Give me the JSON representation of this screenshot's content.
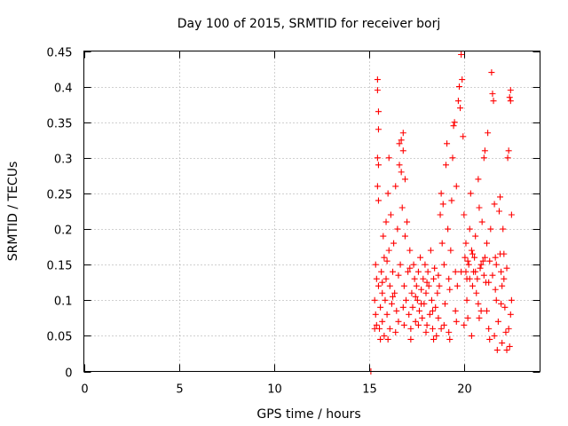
{
  "chart_data": {
    "type": "scatter",
    "title": "Day 100 of 2015, SRMTID for receiver borj",
    "xlabel": "GPS time / hours",
    "ylabel": "SRMTID / TECUs",
    "xlim": [
      0,
      24
    ],
    "ylim": [
      0,
      0.45
    ],
    "xticks": [
      0,
      5,
      10,
      15,
      20
    ],
    "xtick_labels": [
      "0",
      "5",
      "10",
      "15",
      "20"
    ],
    "yticks": [
      0,
      0.05,
      0.1,
      0.15,
      0.2,
      0.25,
      0.3,
      0.35,
      0.4,
      0.45
    ],
    "ytick_labels": [
      "0",
      "0.05",
      "0.1",
      "0.15",
      "0.2",
      "0.25",
      "0.3",
      "0.35",
      "0.4",
      "0.45"
    ],
    "grid": true,
    "marker": "+",
    "color": "#ff0000",
    "series": [
      {
        "name": "SRMTID",
        "points": [
          [
            15.1,
            0.0
          ],
          [
            15.3,
            0.06
          ],
          [
            15.3,
            0.1
          ],
          [
            15.35,
            0.15
          ],
          [
            15.35,
            0.08
          ],
          [
            15.4,
            0.13
          ],
          [
            15.4,
            0.065
          ],
          [
            15.45,
            0.41
          ],
          [
            15.45,
            0.395
          ],
          [
            15.5,
            0.365
          ],
          [
            15.5,
            0.34
          ],
          [
            15.45,
            0.3
          ],
          [
            15.5,
            0.29
          ],
          [
            15.45,
            0.26
          ],
          [
            15.5,
            0.24
          ],
          [
            15.5,
            0.12
          ],
          [
            15.55,
            0.06
          ],
          [
            15.6,
            0.045
          ],
          [
            15.6,
            0.09
          ],
          [
            15.65,
            0.14
          ],
          [
            15.7,
            0.07
          ],
          [
            15.7,
            0.11
          ],
          [
            15.75,
            0.19
          ],
          [
            15.8,
            0.16
          ],
          [
            15.8,
            0.05
          ],
          [
            15.85,
            0.1
          ],
          [
            15.9,
            0.21
          ],
          [
            15.9,
            0.13
          ],
          [
            15.95,
            0.08
          ],
          [
            16.0,
            0.25
          ],
          [
            16.05,
            0.17
          ],
          [
            16.05,
            0.3
          ],
          [
            16.1,
            0.12
          ],
          [
            16.1,
            0.06
          ],
          [
            16.15,
            0.22
          ],
          [
            16.2,
            0.095
          ],
          [
            16.25,
            0.14
          ],
          [
            16.3,
            0.18
          ],
          [
            16.35,
            0.11
          ],
          [
            16.4,
            0.26
          ],
          [
            16.45,
            0.085
          ],
          [
            16.5,
            0.2
          ],
          [
            16.55,
            0.07
          ],
          [
            16.6,
            0.29
          ],
          [
            16.6,
            0.32
          ],
          [
            16.65,
            0.15
          ],
          [
            16.7,
            0.28
          ],
          [
            16.7,
            0.325
          ],
          [
            16.75,
            0.23
          ],
          [
            16.8,
            0.335
          ],
          [
            16.8,
            0.31
          ],
          [
            16.85,
            0.12
          ],
          [
            16.9,
            0.27
          ],
          [
            16.9,
            0.19
          ],
          [
            16.95,
            0.1
          ],
          [
            17.0,
            0.21
          ],
          [
            17.05,
            0.14
          ],
          [
            17.1,
            0.08
          ],
          [
            17.15,
            0.17
          ],
          [
            17.2,
            0.06
          ],
          [
            17.25,
            0.11
          ],
          [
            17.3,
            0.09
          ],
          [
            17.35,
            0.15
          ],
          [
            17.4,
            0.13
          ],
          [
            17.45,
            0.07
          ],
          [
            17.5,
            0.12
          ],
          [
            17.55,
            0.1
          ],
          [
            17.6,
            0.14
          ],
          [
            17.65,
            0.085
          ],
          [
            17.7,
            0.16
          ],
          [
            17.75,
            0.115
          ],
          [
            17.8,
            0.075
          ],
          [
            17.85,
            0.13
          ],
          [
            17.9,
            0.095
          ],
          [
            17.95,
            0.15
          ],
          [
            18.0,
            0.11
          ],
          [
            18.05,
            0.065
          ],
          [
            18.1,
            0.14
          ],
          [
            18.15,
            0.12
          ],
          [
            18.2,
            0.08
          ],
          [
            18.25,
            0.17
          ],
          [
            18.3,
            0.1
          ],
          [
            18.35,
            0.06
          ],
          [
            18.4,
            0.13
          ],
          [
            18.45,
            0.145
          ],
          [
            18.5,
            0.09
          ],
          [
            18.55,
            0.05
          ],
          [
            18.6,
            0.11
          ],
          [
            18.65,
            0.075
          ],
          [
            18.7,
            0.12
          ],
          [
            18.75,
            0.22
          ],
          [
            18.8,
            0.25
          ],
          [
            18.85,
            0.18
          ],
          [
            18.9,
            0.235
          ],
          [
            18.95,
            0.15
          ],
          [
            19.0,
            0.095
          ],
          [
            19.05,
            0.29
          ],
          [
            19.1,
            0.32
          ],
          [
            19.15,
            0.2
          ],
          [
            19.2,
            0.13
          ],
          [
            19.25,
            0.045
          ],
          [
            19.3,
            0.17
          ],
          [
            19.35,
            0.24
          ],
          [
            19.4,
            0.3
          ],
          [
            19.45,
            0.345
          ],
          [
            19.5,
            0.35
          ],
          [
            19.55,
            0.14
          ],
          [
            19.6,
            0.26
          ],
          [
            19.65,
            0.12
          ],
          [
            19.7,
            0.38
          ],
          [
            19.75,
            0.4
          ],
          [
            19.8,
            0.37
          ],
          [
            19.85,
            0.445
          ],
          [
            19.9,
            0.41
          ],
          [
            19.95,
            0.33
          ],
          [
            20.0,
            0.22
          ],
          [
            20.05,
            0.16
          ],
          [
            20.1,
            0.18
          ],
          [
            20.15,
            0.13
          ],
          [
            20.2,
            0.075
          ],
          [
            20.25,
            0.15
          ],
          [
            20.3,
            0.2
          ],
          [
            20.35,
            0.25
          ],
          [
            20.4,
            0.17
          ],
          [
            20.45,
            0.12
          ],
          [
            20.5,
            0.14
          ],
          [
            20.55,
            0.16
          ],
          [
            20.6,
            0.19
          ],
          [
            20.65,
            0.11
          ],
          [
            20.7,
            0.13
          ],
          [
            20.75,
            0.27
          ],
          [
            20.8,
            0.23
          ],
          [
            20.85,
            0.145
          ],
          [
            20.9,
            0.085
          ],
          [
            20.95,
            0.21
          ],
          [
            21.0,
            0.155
          ],
          [
            21.05,
            0.3
          ],
          [
            21.1,
            0.31
          ],
          [
            21.15,
            0.125
          ],
          [
            21.2,
            0.18
          ],
          [
            21.25,
            0.335
          ],
          [
            21.3,
            0.06
          ],
          [
            21.35,
            0.045
          ],
          [
            21.4,
            0.2
          ],
          [
            21.45,
            0.42
          ],
          [
            21.5,
            0.39
          ],
          [
            21.55,
            0.38
          ],
          [
            21.6,
            0.235
          ],
          [
            21.65,
            0.16
          ],
          [
            21.7,
            0.1
          ],
          [
            21.75,
            0.03
          ],
          [
            21.8,
            0.07
          ],
          [
            21.85,
            0.225
          ],
          [
            21.9,
            0.245
          ],
          [
            21.95,
            0.14
          ],
          [
            22.0,
            0.12
          ],
          [
            22.05,
            0.2
          ],
          [
            22.1,
            0.165
          ],
          [
            22.15,
            0.09
          ],
          [
            22.2,
            0.055
          ],
          [
            22.25,
            0.03
          ],
          [
            22.3,
            0.3
          ],
          [
            22.35,
            0.31
          ],
          [
            22.4,
            0.385
          ],
          [
            22.45,
            0.395
          ],
          [
            22.45,
            0.38
          ],
          [
            22.5,
            0.22
          ],
          [
            22.5,
            0.1
          ],
          [
            22.45,
            0.08
          ],
          [
            15.7,
            0.125
          ],
          [
            15.95,
            0.155
          ],
          [
            16.25,
            0.105
          ],
          [
            16.55,
            0.135
          ],
          [
            16.85,
            0.065
          ],
          [
            17.15,
            0.145
          ],
          [
            17.45,
            0.105
          ],
          [
            17.75,
            0.095
          ],
          [
            18.05,
            0.125
          ],
          [
            18.35,
            0.085
          ],
          [
            18.65,
            0.135
          ],
          [
            18.95,
            0.065
          ],
          [
            19.25,
            0.115
          ],
          [
            19.55,
            0.085
          ],
          [
            19.85,
            0.14
          ],
          [
            20.15,
            0.1
          ],
          [
            20.45,
            0.165
          ],
          [
            20.75,
            0.095
          ],
          [
            21.05,
            0.135
          ],
          [
            21.35,
            0.155
          ],
          [
            21.65,
            0.115
          ],
          [
            21.95,
            0.095
          ],
          [
            22.25,
            0.145
          ],
          [
            22.35,
            0.06
          ],
          [
            16.0,
            0.045
          ],
          [
            16.4,
            0.055
          ],
          [
            16.8,
            0.09
          ],
          [
            17.2,
            0.045
          ],
          [
            17.6,
            0.065
          ],
          [
            18.0,
            0.055
          ],
          [
            18.4,
            0.045
          ],
          [
            18.8,
            0.06
          ],
          [
            19.2,
            0.055
          ],
          [
            19.6,
            0.07
          ],
          [
            20.0,
            0.065
          ],
          [
            20.4,
            0.05
          ],
          [
            20.8,
            0.075
          ],
          [
            21.2,
            0.085
          ],
          [
            21.6,
            0.05
          ],
          [
            22.0,
            0.04
          ],
          [
            22.4,
            0.035
          ],
          [
            20.1,
            0.14
          ],
          [
            20.2,
            0.155
          ],
          [
            20.3,
            0.13
          ],
          [
            20.6,
            0.14
          ],
          [
            20.9,
            0.15
          ],
          [
            21.1,
            0.16
          ],
          [
            21.3,
            0.125
          ],
          [
            21.5,
            0.135
          ],
          [
            21.7,
            0.15
          ],
          [
            21.9,
            0.165
          ],
          [
            22.1,
            0.13
          ]
        ]
      }
    ]
  }
}
